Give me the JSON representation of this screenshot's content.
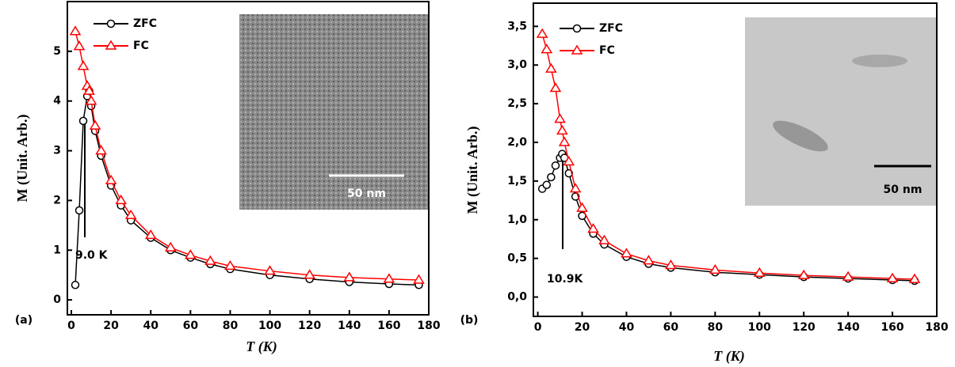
{
  "chart_data": [
    {
      "type": "line",
      "panel_label": "(a)",
      "x_label": "T (K)",
      "y_label": "M (Unit. Arb.)",
      "annotation": "9.0 K",
      "scale_bar": "50 nm",
      "legend": "upper left",
      "x": [
        2,
        4,
        6,
        8,
        9,
        10,
        12,
        15,
        20,
        25,
        30,
        40,
        50,
        60,
        70,
        80,
        100,
        120,
        140,
        160,
        175
      ],
      "series": [
        {
          "name": "ZFC",
          "color": "#000000",
          "marker": "circle",
          "values": [
            0.3,
            1.8,
            3.6,
            4.1,
            4.2,
            3.9,
            3.4,
            2.9,
            2.3,
            1.9,
            1.6,
            1.25,
            1.0,
            0.85,
            0.72,
            0.62,
            0.5,
            0.42,
            0.36,
            0.32,
            0.3
          ]
        },
        {
          "name": "FC",
          "color": "#ff0000",
          "marker": "triangle",
          "values": [
            5.4,
            5.1,
            4.7,
            4.3,
            4.2,
            4.0,
            3.5,
            3.0,
            2.4,
            2.0,
            1.7,
            1.3,
            1.05,
            0.9,
            0.78,
            0.68,
            0.58,
            0.5,
            0.45,
            0.42,
            0.4
          ]
        }
      ],
      "xlim": [
        -2,
        180
      ],
      "xticks": [
        0,
        20,
        40,
        60,
        80,
        100,
        120,
        140,
        160,
        180
      ],
      "ylim": [
        -0.3,
        6.0
      ],
      "yticks": [
        0,
        1,
        2,
        3,
        4,
        5
      ]
    },
    {
      "type": "line",
      "panel_label": "(b)",
      "x_label": "T (K)",
      "y_label": "M (Unit. Arb.)",
      "annotation": "10.9K",
      "scale_bar": "50 nm",
      "legend": "upper left",
      "x": [
        2,
        4,
        6,
        8,
        10,
        11,
        12,
        14,
        17,
        20,
        25,
        30,
        40,
        50,
        60,
        80,
        100,
        120,
        140,
        160,
        170
      ],
      "series": [
        {
          "name": "ZFC",
          "color": "#000000",
          "marker": "circle",
          "values": [
            1.4,
            1.45,
            1.55,
            1.7,
            1.8,
            1.85,
            1.8,
            1.6,
            1.3,
            1.05,
            0.82,
            0.68,
            0.52,
            0.43,
            0.38,
            0.32,
            0.29,
            0.26,
            0.24,
            0.22,
            0.21
          ]
        },
        {
          "name": "FC",
          "color": "#ff0000",
          "marker": "triangle",
          "values": [
            3.4,
            3.2,
            2.95,
            2.7,
            2.3,
            2.15,
            2.0,
            1.75,
            1.4,
            1.15,
            0.88,
            0.73,
            0.56,
            0.47,
            0.41,
            0.35,
            0.31,
            0.28,
            0.26,
            0.24,
            0.23
          ]
        }
      ],
      "xlim": [
        -2,
        180
      ],
      "xticks": [
        0,
        20,
        40,
        60,
        80,
        100,
        120,
        140,
        160,
        180
      ],
      "ylim": [
        -0.25,
        3.8
      ],
      "yticks": [
        {
          "value": 0,
          "label": "0,0"
        },
        {
          "value": 0.5,
          "label": "0,5"
        },
        {
          "value": 1,
          "label": "1,0"
        },
        {
          "value": 1.5,
          "label": "1,5"
        },
        {
          "value": 2,
          "label": "2,0"
        },
        {
          "value": 2.5,
          "label": "2,5"
        },
        {
          "value": 3,
          "label": "3,0"
        },
        {
          "value": 3.5,
          "label": "3,5"
        }
      ]
    }
  ]
}
